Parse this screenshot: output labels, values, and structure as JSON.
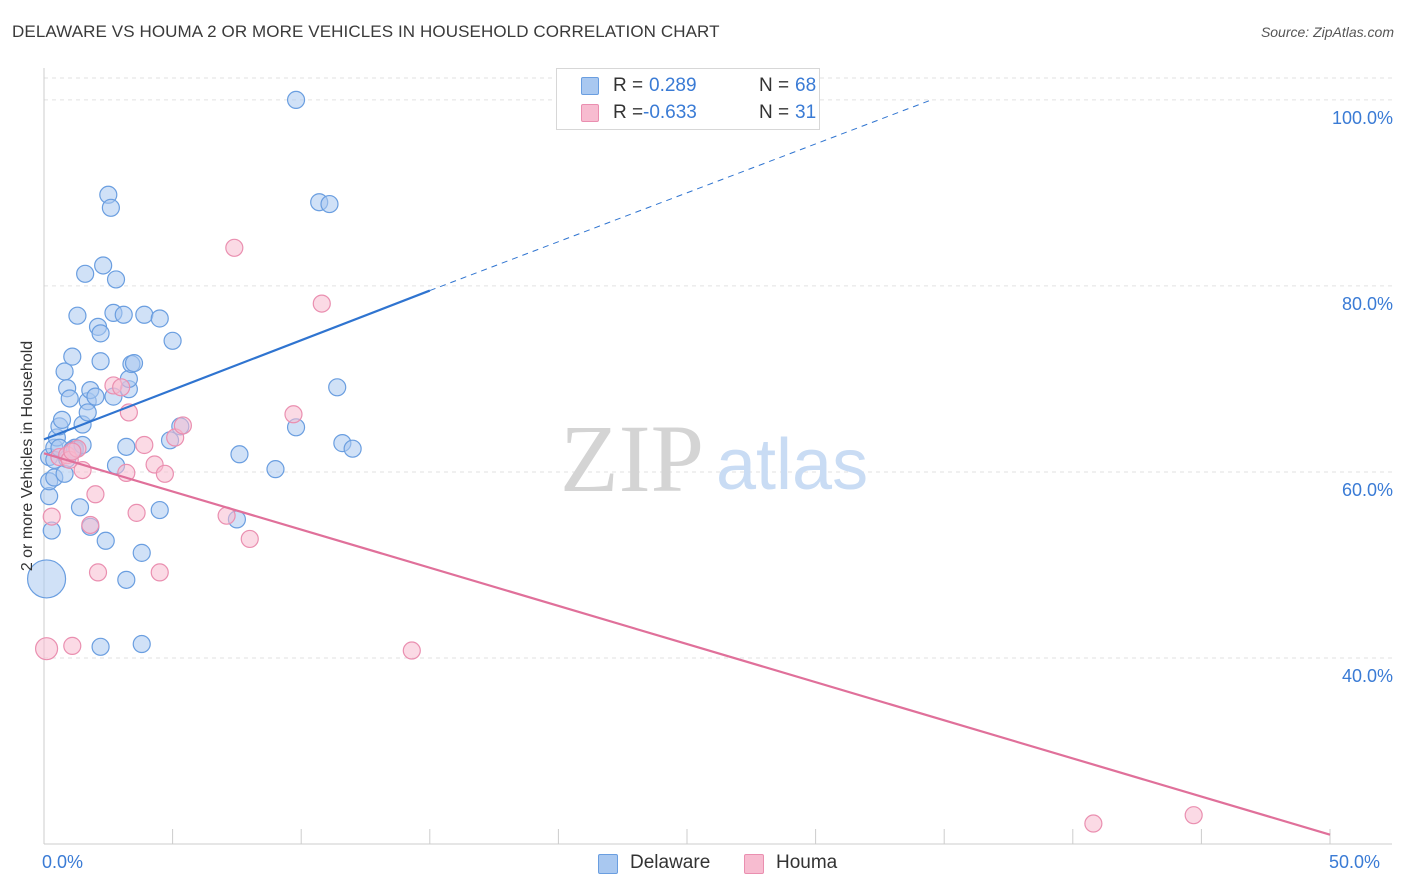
{
  "title": "DELAWARE VS HOUMA 2 OR MORE VEHICLES IN HOUSEHOLD CORRELATION CHART",
  "source": "Source: ZipAtlas.com",
  "watermark": {
    "zip": "ZIP",
    "atlas": "atlas"
  },
  "colors": {
    "delaware_fill": "#a9c8f0",
    "delaware_stroke": "#6a9ee0",
    "delaware_line": "#2f74d0",
    "houma_fill": "#f7bcd0",
    "houma_stroke": "#ea8fb0",
    "houma_line": "#e0709a",
    "value_text": "#3a7bd5"
  },
  "legend": {
    "rows": [
      {
        "series": "Delaware",
        "r_label": "R =",
        "r_value": "0.289",
        "n_label": "N =",
        "n_value": "68"
      },
      {
        "series": "Houma",
        "r_label": "R =",
        "r_value": "-0.633",
        "n_label": "N =",
        "n_value": "31"
      }
    ]
  },
  "bottom_legend": [
    {
      "label": "Delaware"
    },
    {
      "label": "Houma"
    }
  ],
  "chart_data": {
    "type": "scatter",
    "title": "DELAWARE VS HOUMA 2 OR MORE VEHICLES IN HOUSEHOLD CORRELATION CHART",
    "xlabel": "",
    "ylabel": "2 or more Vehicles in Household",
    "xlim": [
      0,
      50
    ],
    "ylim": [
      20,
      103
    ],
    "x_tick_labels": [
      "0.0%",
      "50.0%"
    ],
    "y_ticks": [
      40,
      60,
      80,
      100
    ],
    "y_tick_labels": [
      "40.0%",
      "60.0%",
      "80.0%",
      "100.0%"
    ],
    "grid": true,
    "legend_position": "top-center",
    "series": [
      {
        "name": "Delaware",
        "r": 0.289,
        "n": 68,
        "trend": {
          "x0": 0,
          "y0": 63.5,
          "x1": 15,
          "y1": 79.5,
          "dashed_to_x": 34.5,
          "dashed_to_y": 100
        },
        "points": [
          [
            0.1,
            48.5,
            3
          ],
          [
            0.2,
            57.4,
            1
          ],
          [
            0.2,
            59.0,
            1
          ],
          [
            0.2,
            61.6,
            1
          ],
          [
            0.3,
            53.7,
            1
          ],
          [
            0.4,
            62.6,
            1
          ],
          [
            0.4,
            59.4,
            1
          ],
          [
            0.4,
            61.3,
            1
          ],
          [
            0.5,
            63.7,
            1
          ],
          [
            0.6,
            64.9,
            1
          ],
          [
            0.6,
            62.6,
            1
          ],
          [
            0.7,
            65.6,
            1
          ],
          [
            0.8,
            70.8,
            1
          ],
          [
            0.8,
            59.8,
            1
          ],
          [
            0.9,
            69.0,
            1
          ],
          [
            0.9,
            61.4,
            1
          ],
          [
            1.0,
            67.9,
            1
          ],
          [
            1.1,
            62.4,
            1
          ],
          [
            1.1,
            72.4,
            1
          ],
          [
            1.2,
            62.6,
            1
          ],
          [
            1.2,
            62.4,
            1
          ],
          [
            1.3,
            76.8,
            1
          ],
          [
            1.4,
            56.2,
            1
          ],
          [
            1.5,
            62.9,
            1
          ],
          [
            1.5,
            65.1,
            1
          ],
          [
            1.6,
            81.3,
            1
          ],
          [
            1.7,
            67.6,
            1
          ],
          [
            1.7,
            66.4,
            1
          ],
          [
            1.8,
            68.8,
            1
          ],
          [
            1.8,
            54.1,
            1
          ],
          [
            2.0,
            68.1,
            1
          ],
          [
            2.1,
            75.6,
            1
          ],
          [
            2.2,
            41.2,
            1
          ],
          [
            2.2,
            74.9,
            1
          ],
          [
            2.2,
            71.9,
            1
          ],
          [
            2.3,
            82.2,
            1
          ],
          [
            2.4,
            52.6,
            1
          ],
          [
            2.5,
            89.8,
            1
          ],
          [
            2.6,
            88.4,
            1
          ],
          [
            2.7,
            68.1,
            1
          ],
          [
            2.7,
            77.1,
            1
          ],
          [
            2.8,
            80.7,
            1
          ],
          [
            2.8,
            60.7,
            1
          ],
          [
            3.1,
            76.9,
            1
          ],
          [
            3.2,
            62.7,
            1
          ],
          [
            3.2,
            48.4,
            1
          ],
          [
            3.3,
            68.9,
            1
          ],
          [
            3.3,
            70.0,
            1
          ],
          [
            3.4,
            71.6,
            1
          ],
          [
            3.5,
            71.7,
            1
          ],
          [
            3.8,
            51.3,
            1
          ],
          [
            3.8,
            41.5,
            1
          ],
          [
            3.9,
            76.9,
            1
          ],
          [
            4.5,
            55.9,
            1
          ],
          [
            4.5,
            76.5,
            1
          ],
          [
            4.9,
            63.4,
            1
          ],
          [
            5.0,
            74.1,
            1
          ],
          [
            5.3,
            64.9,
            1
          ],
          [
            7.5,
            54.9,
            1
          ],
          [
            7.6,
            61.9,
            1
          ],
          [
            9.0,
            60.3,
            1
          ],
          [
            9.8,
            100.0,
            1
          ],
          [
            9.8,
            64.8,
            1
          ],
          [
            10.7,
            89.0,
            1
          ],
          [
            11.1,
            88.8,
            1
          ],
          [
            11.4,
            69.1,
            1
          ],
          [
            11.6,
            63.1,
            1
          ],
          [
            12.0,
            62.5,
            1
          ]
        ]
      },
      {
        "name": "Houma",
        "r": -0.633,
        "n": 31,
        "trend": {
          "x0": 0,
          "y0": 62.0,
          "x1": 50,
          "y1": 21.0
        },
        "points": [
          [
            0.1,
            41.0,
            2
          ],
          [
            0.3,
            55.2,
            1
          ],
          [
            0.6,
            61.6,
            1
          ],
          [
            0.9,
            61.8,
            1
          ],
          [
            1.0,
            61.3,
            1
          ],
          [
            1.1,
            41.3,
            1
          ],
          [
            1.3,
            62.5,
            1
          ],
          [
            1.5,
            60.2,
            1
          ],
          [
            1.8,
            54.3,
            1
          ],
          [
            2.0,
            57.6,
            1
          ],
          [
            2.1,
            49.2,
            1
          ],
          [
            2.7,
            69.3,
            1
          ],
          [
            3.0,
            69.1,
            1
          ],
          [
            3.2,
            59.9,
            1
          ],
          [
            3.3,
            66.4,
            1
          ],
          [
            3.6,
            55.6,
            1
          ],
          [
            3.9,
            62.9,
            1
          ],
          [
            4.3,
            60.8,
            1
          ],
          [
            4.5,
            49.2,
            1
          ],
          [
            4.7,
            59.8,
            1
          ],
          [
            5.1,
            63.7,
            1
          ],
          [
            5.4,
            65.0,
            1
          ],
          [
            7.1,
            55.3,
            1
          ],
          [
            7.4,
            84.1,
            1
          ],
          [
            8.0,
            52.8,
            1
          ],
          [
            9.7,
            66.2,
            1
          ],
          [
            10.8,
            78.1,
            1
          ],
          [
            14.3,
            40.8,
            1
          ],
          [
            40.8,
            22.2,
            1
          ],
          [
            44.7,
            23.1,
            1
          ],
          [
            1.1,
            62.2,
            1
          ]
        ]
      }
    ]
  }
}
